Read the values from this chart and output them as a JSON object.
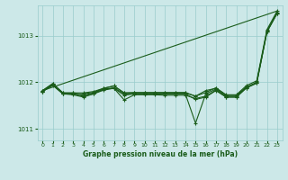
{
  "bg_color": "#cce8e8",
  "grid_color": "#99cccc",
  "line_color": "#1a5c1a",
  "xlim": [
    -0.5,
    23.5
  ],
  "ylim": [
    1010.75,
    1013.65
  ],
  "yticks": [
    1011,
    1012,
    1013
  ],
  "xticks": [
    0,
    1,
    2,
    3,
    4,
    5,
    6,
    7,
    8,
    9,
    10,
    11,
    12,
    13,
    14,
    15,
    16,
    17,
    18,
    19,
    20,
    21,
    22,
    23
  ],
  "xlabel": "Graphe pression niveau de la mer (hPa)",
  "lines": [
    [
      1011.82,
      1011.97,
      1011.77,
      1011.77,
      1011.75,
      1011.78,
      1011.87,
      1011.92,
      1011.77,
      1011.78,
      1011.78,
      1011.78,
      1011.78,
      1011.78,
      1011.78,
      1011.7,
      1011.78,
      1011.88,
      1011.73,
      1011.73,
      1011.93,
      1012.03,
      1013.13,
      1013.53
    ],
    [
      1011.8,
      1011.95,
      1011.75,
      1011.75,
      1011.7,
      1011.75,
      1011.85,
      1011.88,
      1011.75,
      1011.75,
      1011.75,
      1011.75,
      1011.75,
      1011.75,
      1011.75,
      1011.12,
      1011.75,
      1011.85,
      1011.7,
      1011.7,
      1011.9,
      1012.0,
      1013.1,
      1013.5
    ],
    [
      1011.8,
      1011.95,
      1011.75,
      1011.73,
      1011.68,
      1011.75,
      1011.83,
      1011.87,
      1011.62,
      1011.73,
      1011.73,
      1011.73,
      1011.72,
      1011.72,
      1011.72,
      1011.65,
      1011.7,
      1011.83,
      1011.68,
      1011.68,
      1011.88,
      1011.98,
      1013.08,
      1013.48
    ],
    [
      1011.8,
      1011.93,
      1011.75,
      1011.75,
      1011.72,
      1011.77,
      1011.85,
      1011.87,
      1011.72,
      1011.75,
      1011.75,
      1011.75,
      1011.75,
      1011.75,
      1011.75,
      1011.63,
      1011.68,
      1011.82,
      1011.68,
      1011.68,
      1011.88,
      1011.98,
      1013.08,
      1013.48
    ],
    [
      1011.82,
      1011.97,
      1011.77,
      1011.77,
      1011.77,
      1011.8,
      1011.87,
      1011.92,
      1011.77,
      1011.77,
      1011.77,
      1011.77,
      1011.77,
      1011.77,
      1011.77,
      1011.7,
      1011.82,
      1011.87,
      1011.72,
      1011.72,
      1011.9,
      null,
      null,
      null
    ]
  ]
}
